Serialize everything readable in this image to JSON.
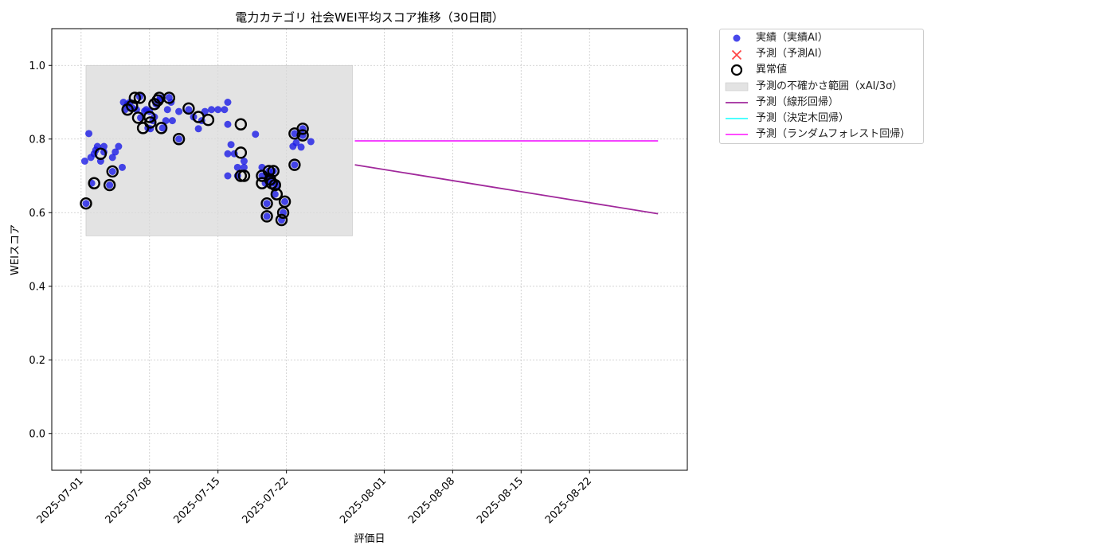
{
  "chart_data": {
    "type": "scatter",
    "title": "電力カテゴリ 社会WEI平均スコア推移（30日間）",
    "xlabel": "評価日",
    "ylabel": "WEIスコア",
    "xlim": [
      "2025-06-28",
      "2025-09-01"
    ],
    "ylim": [
      -0.1,
      1.1
    ],
    "grid": true,
    "legend_position": "outside-top-right",
    "xticks": [
      "2025-07-01",
      "2025-07-08",
      "2025-07-15",
      "2025-07-22",
      "2025-08-01",
      "2025-08-08",
      "2025-08-15",
      "2025-08-22"
    ],
    "yticks": [
      0.0,
      0.2,
      0.4,
      0.6,
      0.8,
      1.0
    ],
    "colors": {
      "actual": "#1a1ae6",
      "predicted_marker": "#ff4444",
      "anomaly": "#000000",
      "uncertainty": "#d9d9d9",
      "linear": "#a0289b",
      "tree": "#33ffff",
      "forest": "#ff33ff"
    },
    "uncertainty_band": {
      "x": [
        "2025-07-01 12:00",
        "2025-07-28 18:00"
      ],
      "y": [
        0.537,
        1.0
      ]
    },
    "series": [
      {
        "name": "実績（実績AI）",
        "kind": "scatter",
        "points": [
          [
            "2025-07-01 09:00",
            0.74
          ],
          [
            "2025-07-01 12:00",
            0.625
          ],
          [
            "2025-07-01 19:00",
            0.815
          ],
          [
            "2025-07-02 00:00",
            0.75
          ],
          [
            "2025-07-02 02:00",
            0.68
          ],
          [
            "2025-07-02 08:00",
            0.76
          ],
          [
            "2025-07-02 12:00",
            0.77
          ],
          [
            "2025-07-02 16:00",
            0.78
          ],
          [
            "2025-07-03 00:00",
            0.74
          ],
          [
            "2025-07-03 08:00",
            0.78
          ],
          [
            "2025-07-03 08:00",
            0.765
          ],
          [
            "2025-07-03 22:00",
            0.675
          ],
          [
            "2025-07-04 05:00",
            0.712
          ],
          [
            "2025-07-04 05:00",
            0.75
          ],
          [
            "2025-07-04 12:00",
            0.765
          ],
          [
            "2025-07-04 20:00",
            0.78
          ],
          [
            "2025-07-05 05:00",
            0.723
          ],
          [
            "2025-07-05 08:00",
            0.9
          ],
          [
            "2025-07-05 12:00",
            0.88
          ],
          [
            "2025-07-05 18:00",
            0.895
          ],
          [
            "2025-07-06 00:00",
            0.9
          ],
          [
            "2025-07-06 05:00",
            0.885
          ],
          [
            "2025-07-06 16:00",
            0.88
          ],
          [
            "2025-07-07 00:00",
            0.915
          ],
          [
            "2025-07-07 02:00",
            0.858
          ],
          [
            "2025-07-07 12:00",
            0.876
          ],
          [
            "2025-07-07 16:00",
            0.88
          ],
          [
            "2025-07-07 20:00",
            0.83
          ],
          [
            "2025-07-08 00:00",
            0.875
          ],
          [
            "2025-07-08 02:00",
            0.828
          ],
          [
            "2025-07-08 08:00",
            0.85
          ],
          [
            "2025-07-08 12:00",
            0.86
          ],
          [
            "2025-07-08 16:00",
            0.895
          ],
          [
            "2025-07-09 00:00",
            0.905
          ],
          [
            "2025-07-09 02:00",
            0.912
          ],
          [
            "2025-07-09 08:00",
            0.83
          ],
          [
            "2025-07-09 16:00",
            0.85
          ],
          [
            "2025-07-09 20:00",
            0.88
          ],
          [
            "2025-07-10 00:00",
            0.913
          ],
          [
            "2025-07-10 05:00",
            0.9
          ],
          [
            "2025-07-10 08:00",
            0.85
          ],
          [
            "2025-07-11 00:00",
            0.8
          ],
          [
            "2025-07-11 00:00",
            0.875
          ],
          [
            "2025-07-12 00:00",
            0.88
          ],
          [
            "2025-07-12 12:00",
            0.86
          ],
          [
            "2025-07-13 00:00",
            0.828
          ],
          [
            "2025-07-13 08:00",
            0.85
          ],
          [
            "2025-07-13 16:00",
            0.875
          ],
          [
            "2025-07-14 08:00",
            0.88
          ],
          [
            "2025-07-15 00:00",
            0.88
          ],
          [
            "2025-07-15 16:00",
            0.88
          ],
          [
            "2025-07-16 00:00",
            0.9
          ],
          [
            "2025-07-16 00:00",
            0.84
          ],
          [
            "2025-07-16 00:00",
            0.76
          ],
          [
            "2025-07-16 00:00",
            0.7
          ],
          [
            "2025-07-16 08:00",
            0.785
          ],
          [
            "2025-07-16 16:00",
            0.76
          ],
          [
            "2025-07-17 00:00",
            0.723
          ],
          [
            "2025-07-17 00:00",
            0.7
          ],
          [
            "2025-07-17 16:00",
            0.74
          ],
          [
            "2025-07-17 16:00",
            0.723
          ],
          [
            "2025-07-18 20:00",
            0.813
          ],
          [
            "2025-07-19 12:00",
            0.723
          ],
          [
            "2025-07-19 12:00",
            0.7
          ],
          [
            "2025-07-19 20:00",
            0.68
          ],
          [
            "2025-07-20 00:00",
            0.625
          ],
          [
            "2025-07-20 00:00",
            0.59
          ],
          [
            "2025-07-20 05:00",
            0.713
          ],
          [
            "2025-07-20 08:00",
            0.7
          ],
          [
            "2025-07-20 08:00",
            0.69
          ],
          [
            "2025-07-20 12:00",
            0.68
          ],
          [
            "2025-07-20 16:00",
            0.713
          ],
          [
            "2025-07-20 20:00",
            0.65
          ],
          [
            "2025-07-21 00:00",
            0.675
          ],
          [
            "2025-07-21 12:00",
            0.58
          ],
          [
            "2025-07-21 16:00",
            0.6
          ],
          [
            "2025-07-21 20:00",
            0.63
          ],
          [
            "2025-07-22 16:00",
            0.78
          ],
          [
            "2025-07-22 20:00",
            0.815
          ],
          [
            "2025-07-22 20:00",
            0.73
          ],
          [
            "2025-07-23 00:00",
            0.79
          ],
          [
            "2025-07-23 12:00",
            0.778
          ],
          [
            "2025-07-23 16:00",
            0.81
          ],
          [
            "2025-07-23 16:00",
            0.828
          ],
          [
            "2025-07-24 12:00",
            0.793
          ]
        ]
      },
      {
        "name": "予測（予測AI）",
        "kind": "marker"
      },
      {
        "name": "異常値",
        "kind": "anomaly",
        "points": [
          [
            "2025-07-01 12:00",
            0.625
          ],
          [
            "2025-07-02 08:00",
            0.68
          ],
          [
            "2025-07-03 00:00",
            0.76
          ],
          [
            "2025-07-03 22:00",
            0.675
          ],
          [
            "2025-07-04 05:00",
            0.712
          ],
          [
            "2025-07-05 18:00",
            0.88
          ],
          [
            "2025-07-06 05:00",
            0.89
          ],
          [
            "2025-07-06 12:00",
            0.912
          ],
          [
            "2025-07-06 20:00",
            0.858
          ],
          [
            "2025-07-07 00:00",
            0.912
          ],
          [
            "2025-07-07 08:00",
            0.83
          ],
          [
            "2025-07-08 00:00",
            0.86
          ],
          [
            "2025-07-08 02:00",
            0.845
          ],
          [
            "2025-07-08 12:00",
            0.895
          ],
          [
            "2025-07-08 20:00",
            0.905
          ],
          [
            "2025-07-09 00:00",
            0.912
          ],
          [
            "2025-07-09 05:00",
            0.83
          ],
          [
            "2025-07-10 00:00",
            0.912
          ],
          [
            "2025-07-11 00:00",
            0.8
          ],
          [
            "2025-07-12 00:00",
            0.883
          ],
          [
            "2025-07-13 00:00",
            0.86
          ],
          [
            "2025-07-14 00:00",
            0.852
          ],
          [
            "2025-07-17 08:00",
            0.84
          ],
          [
            "2025-07-17 08:00",
            0.763
          ],
          [
            "2025-07-17 08:00",
            0.7
          ],
          [
            "2025-07-17 16:00",
            0.7
          ],
          [
            "2025-07-19 12:00",
            0.7
          ],
          [
            "2025-07-19 12:00",
            0.68
          ],
          [
            "2025-07-20 00:00",
            0.625
          ],
          [
            "2025-07-20 00:00",
            0.59
          ],
          [
            "2025-07-20 05:00",
            0.713
          ],
          [
            "2025-07-20 08:00",
            0.69
          ],
          [
            "2025-07-20 12:00",
            0.68
          ],
          [
            "2025-07-20 16:00",
            0.713
          ],
          [
            "2025-07-20 20:00",
            0.675
          ],
          [
            "2025-07-21 00:00",
            0.65
          ],
          [
            "2025-07-21 12:00",
            0.58
          ],
          [
            "2025-07-21 16:00",
            0.6
          ],
          [
            "2025-07-21 20:00",
            0.63
          ],
          [
            "2025-07-22 20:00",
            0.815
          ],
          [
            "2025-07-22 20:00",
            0.73
          ],
          [
            "2025-07-23 16:00",
            0.81
          ],
          [
            "2025-07-23 16:00",
            0.828
          ]
        ]
      },
      {
        "name": "予測の不確かさ範囲（xAI/3σ）",
        "kind": "band"
      },
      {
        "name": "予測（線形回帰）",
        "kind": "line",
        "points": [
          [
            "2025-07-29 00:00",
            0.73
          ],
          [
            "2025-08-29 00:00",
            0.597
          ]
        ]
      },
      {
        "name": "予測（決定木回帰）",
        "kind": "line",
        "points": [
          [
            "2025-07-29 00:00",
            0.795
          ],
          [
            "2025-08-29 00:00",
            0.795
          ]
        ]
      },
      {
        "name": "予測（ランダムフォレスト回帰）",
        "kind": "line",
        "points": [
          [
            "2025-07-29 00:00",
            0.795
          ],
          [
            "2025-08-29 00:00",
            0.795
          ]
        ]
      }
    ]
  }
}
